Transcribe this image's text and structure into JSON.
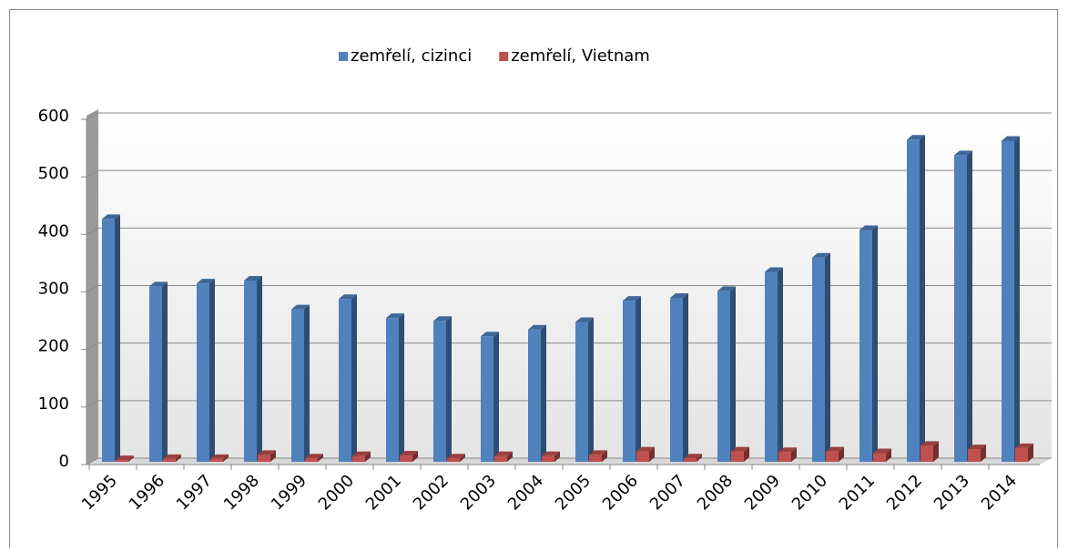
{
  "chart_data": {
    "type": "bar3d",
    "categories": [
      "1995",
      "1996",
      "1997",
      "1998",
      "1999",
      "2000",
      "2001",
      "2002",
      "2003",
      "2004",
      "2005",
      "2006",
      "2007",
      "2008",
      "2009",
      "2010",
      "2011",
      "2012",
      "2013",
      "2014"
    ],
    "series": [
      {
        "name": "zemřelí, cizinci",
        "color": "#4f81bd",
        "values": [
          422,
          305,
          310,
          315,
          265,
          283,
          250,
          245,
          218,
          230,
          243,
          280,
          285,
          297,
          330,
          355,
          403,
          560,
          533,
          558
        ]
      },
      {
        "name": "zemřelí, Vietnam",
        "color": "#c0504d",
        "values": [
          3,
          5,
          5,
          12,
          6,
          10,
          11,
          6,
          10,
          10,
          12,
          18,
          6,
          18,
          17,
          18,
          15,
          28,
          22,
          24
        ]
      }
    ],
    "ylim": [
      0,
      600
    ],
    "yticks": [
      0,
      100,
      200,
      300,
      400,
      500,
      600
    ],
    "grid": true,
    "legend": "top"
  }
}
